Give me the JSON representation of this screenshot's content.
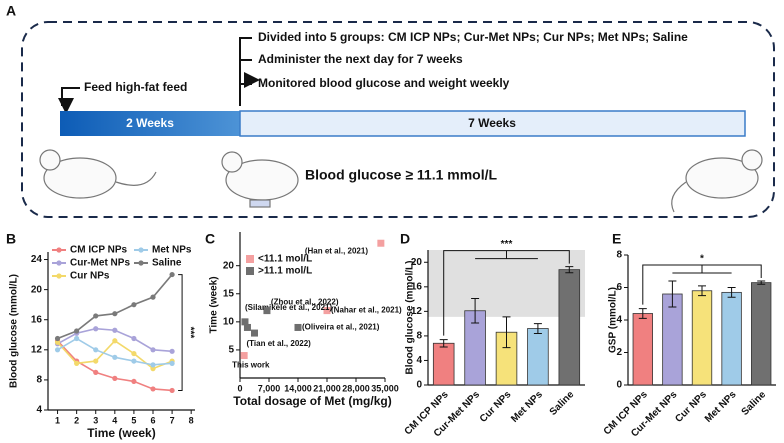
{
  "panel_a": {
    "label": "A",
    "step1": "Feed high-fat feed",
    "steps": [
      "Divided into 5 groups: CM ICP NPs; Cur-Met NPs; Cur NPs; Met NPs; Saline",
      "Administer the next day for 7 weeks",
      "Monitored blood glucose and weight weekly"
    ],
    "phase1": "2 Weeks",
    "phase2": "7 Weeks",
    "criterion": "Blood glucose ≥ 11.1 mmol/L"
  },
  "chart_data": [
    {
      "panel": "B",
      "type": "line",
      "xlabel": "Time (week)",
      "ylabel": "Blood glucose (mmol/L)",
      "annotation": "***",
      "x": [
        1,
        2,
        3,
        4,
        5,
        6,
        7
      ],
      "xlim": [
        0.5,
        8.2
      ],
      "xticks": [
        1,
        2,
        3,
        4,
        5,
        6,
        7,
        8
      ],
      "ylim": [
        4,
        25
      ],
      "yticks": [
        4,
        8,
        12,
        16,
        20,
        24
      ],
      "series": [
        {
          "name": "CM ICP NPs",
          "color": "#f08080",
          "values": [
            13.2,
            10.5,
            9.0,
            8.2,
            7.8,
            6.8,
            6.6
          ]
        },
        {
          "name": "Cur-Met NPs",
          "color": "#a9a3d9",
          "values": [
            12.8,
            14.2,
            14.8,
            14.6,
            13.5,
            12.0,
            11.8
          ]
        },
        {
          "name": "Cur NPs",
          "color": "#f3d96a",
          "values": [
            13.0,
            10.2,
            10.5,
            13.2,
            11.5,
            9.5,
            10.5
          ]
        },
        {
          "name": "Met NPs",
          "color": "#9fcbe8",
          "values": [
            12.0,
            13.5,
            12.0,
            11.0,
            10.5,
            10.0,
            10.2
          ]
        },
        {
          "name": "Saline",
          "color": "#7a7a7a",
          "values": [
            13.5,
            14.5,
            16.5,
            16.8,
            18.0,
            19.0,
            22.0
          ]
        }
      ]
    },
    {
      "panel": "C",
      "type": "scatter",
      "xlabel": "Total dosage of Met (mg/kg)",
      "ylabel": "Time (week)",
      "xlim": [
        0,
        35000
      ],
      "xticks": [
        0,
        {
          "value": 7000,
          "label": "7,000"
        },
        {
          "value": 14000,
          "label": "14,000"
        },
        {
          "value": 21000,
          "label": "21,000"
        },
        {
          "value": 28000,
          "label": "28,000"
        },
        {
          "value": 35000,
          "label": "35,000"
        }
      ],
      "ylim": [
        0,
        26
      ],
      "yticks": [
        5,
        10,
        15,
        20
      ],
      "series": [
        {
          "name": "<11.1 mol/L",
          "color": "#f4a0a0",
          "x": [
            1000,
            21000,
            34000
          ],
          "values": [
            4,
            12,
            24
          ],
          "point_labels": [
            "This work",
            "(Nahar et al., 2021)",
            "(Han et al., 2021)"
          ]
        },
        {
          "name": ">11.1 mol/L",
          "color": "#6e6e6e",
          "x": [
            1200,
            1800,
            3500,
            6500,
            14000
          ],
          "values": [
            10,
            9,
            8,
            12,
            9
          ],
          "point_labels": [
            "(Silamikele et al., 2021)",
            null,
            "(Tian et al., 2022)",
            "(Zhou et al., 2022)",
            "(Oliveira et al., 2021)"
          ]
        }
      ]
    },
    {
      "panel": "D",
      "type": "bar",
      "ylabel": "Blood glucose (mmol/L)",
      "annotation": "***",
      "threshold": 11.1,
      "categories": [
        "CM ICP NPs",
        "Cur-Met NPs",
        "Cur NPs",
        "Met NPs",
        "Saline"
      ],
      "values": [
        6.8,
        12.1,
        8.6,
        9.2,
        18.8
      ],
      "errors": [
        0.6,
        2.0,
        2.5,
        0.8,
        0.5
      ],
      "colors": [
        "#f08080",
        "#a9a3d9",
        "#f6e27a",
        "#9fcbe8",
        "#707070"
      ],
      "ylim": [
        0,
        22
      ],
      "yticks": [
        0,
        4,
        8,
        12,
        16,
        20
      ]
    },
    {
      "panel": "E",
      "type": "bar",
      "ylabel": "GSP (mmol/L)",
      "annotation": "*",
      "categories": [
        "CM ICP NPs",
        "Cur-Met NPs",
        "Cur NPs",
        "Met NPs",
        "Saline"
      ],
      "values": [
        4.4,
        5.6,
        5.8,
        5.7,
        6.3
      ],
      "errors": [
        0.3,
        0.8,
        0.3,
        0.3,
        0.1
      ],
      "colors": [
        "#f08080",
        "#a9a3d9",
        "#f6e27a",
        "#9fcbe8",
        "#707070"
      ],
      "ylim": [
        0,
        8
      ],
      "yticks": [
        0,
        2,
        4,
        6,
        8
      ]
    }
  ]
}
